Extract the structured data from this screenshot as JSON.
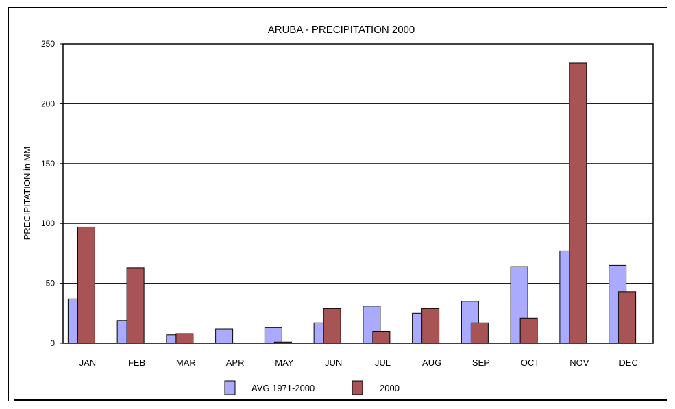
{
  "chart_data": {
    "type": "bar",
    "title": "ARUBA - PRECIPITATION 2000",
    "xlabel": "",
    "ylabel": "PRECIPITATION in MM",
    "ylim": [
      0,
      250
    ],
    "yticks": [
      0,
      50,
      100,
      150,
      200,
      250
    ],
    "ytick_labels": [
      "0",
      "50",
      "100",
      "150",
      "200",
      "250"
    ],
    "grid": true,
    "legend_position": "bottom",
    "categories": [
      "JAN",
      "FEB",
      "MAR",
      "APR",
      "MAY",
      "JUN",
      "JUL",
      "AUG",
      "SEP",
      "OCT",
      "NOV",
      "DEC"
    ],
    "series": [
      {
        "name": "AVG 1971-2000",
        "color": "#aaaaff",
        "values": [
          37,
          19,
          7,
          12,
          13,
          17,
          31,
          25,
          35,
          64,
          77,
          65
        ]
      },
      {
        "name": "2000",
        "color": "#a85454",
        "values": [
          97,
          63,
          8,
          0,
          1,
          29,
          10,
          29,
          17,
          21,
          234,
          43
        ]
      }
    ]
  }
}
